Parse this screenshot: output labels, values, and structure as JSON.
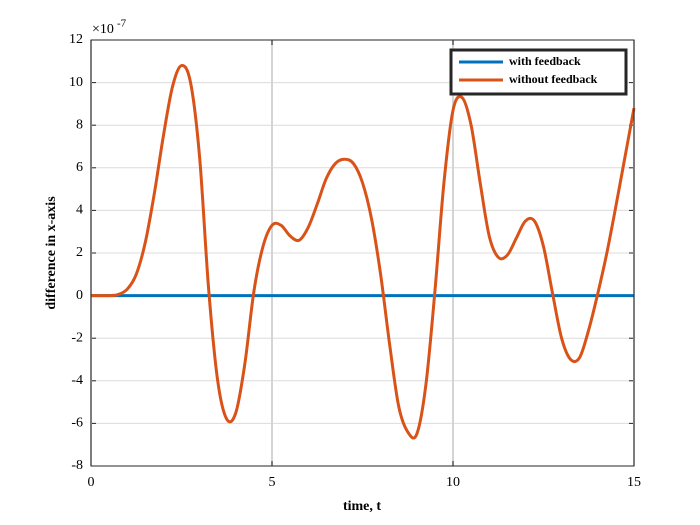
{
  "chart_data": {
    "type": "line",
    "xlabel": "time, t",
    "ylabel": "difference in x-axis",
    "y_exponent": {
      "base": "×10",
      "power": "-7"
    },
    "xlim": [
      0,
      15
    ],
    "xticks": [
      0,
      5,
      10,
      15
    ],
    "ylim": [
      -8,
      12
    ],
    "yticks": [
      -8,
      -6,
      -4,
      -2,
      0,
      2,
      4,
      6,
      8,
      10,
      12
    ],
    "grid": true,
    "legend": "northeast",
    "x": [
      0,
      0.25,
      0.5,
      0.75,
      1,
      1.25,
      1.5,
      1.75,
      2,
      2.25,
      2.5,
      2.75,
      3,
      3.25,
      3.5,
      3.75,
      4,
      4.25,
      4.5,
      4.75,
      5,
      5.25,
      5.5,
      5.75,
      6,
      6.25,
      6.5,
      6.75,
      7,
      7.25,
      7.5,
      7.75,
      8,
      8.25,
      8.5,
      8.75,
      9,
      9.25,
      9.5,
      9.75,
      10,
      10.25,
      10.5,
      10.75,
      11,
      11.25,
      11.5,
      11.75,
      12,
      12.25,
      12.5,
      12.75,
      13,
      13.25,
      13.5,
      13.75,
      14,
      14.25,
      14.5,
      14.75,
      15
    ],
    "series": [
      {
        "name": "with feedback",
        "color": "#0072bd",
        "values": [
          0,
          0,
          0,
          0,
          0,
          0,
          0,
          0,
          0,
          0,
          0,
          0,
          0,
          0,
          0,
          0,
          0,
          0,
          0,
          0,
          0,
          0,
          0,
          0,
          0,
          0,
          0,
          0,
          0,
          0,
          0,
          0,
          0,
          0,
          0,
          0,
          0,
          0,
          0,
          0,
          0,
          0,
          0,
          0,
          0,
          0,
          0,
          0,
          0,
          0,
          0,
          0,
          0,
          0,
          0,
          0,
          0,
          0,
          0,
          0,
          0
        ]
      },
      {
        "name": "without feedback",
        "color": "#d95319",
        "values": [
          0,
          0,
          0,
          0.05,
          0.3,
          1.0,
          2.5,
          4.8,
          7.5,
          9.8,
          10.8,
          10.0,
          6.5,
          0.3,
          -4.0,
          -5.8,
          -5.5,
          -3.2,
          0.2,
          2.3,
          3.3,
          3.3,
          2.8,
          2.6,
          3.2,
          4.3,
          5.5,
          6.2,
          6.4,
          6.2,
          5.3,
          3.6,
          1.0,
          -2.3,
          -5.2,
          -6.4,
          -6.5,
          -4.2,
          0.2,
          5.3,
          8.7,
          9.3,
          8.0,
          5.3,
          2.8,
          1.8,
          1.9,
          2.7,
          3.5,
          3.5,
          2.3,
          0.1,
          -2.0,
          -3.0,
          -2.9,
          -1.6,
          0.1,
          2.0,
          4.2,
          6.5,
          8.8
        ]
      }
    ]
  }
}
